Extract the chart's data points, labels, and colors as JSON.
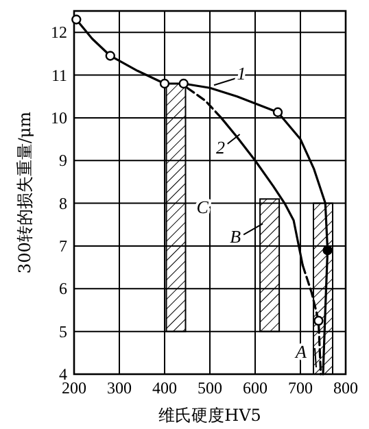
{
  "chart_data": {
    "type": "line",
    "xlabel": "维氏硬度HV5",
    "ylabel": "300转的损失重量/μm",
    "xlim": [
      200,
      800
    ],
    "xticks": [
      200,
      300,
      400,
      500,
      600,
      700,
      800
    ],
    "ylim": [
      4,
      12.5
    ],
    "yticks": [
      4,
      5,
      6,
      7,
      8,
      9,
      10,
      11,
      12
    ],
    "grid": true,
    "series": [
      {
        "type": "bar",
        "color": "#000000",
        "x": [
          425,
          632,
          750
        ],
        "base": [
          5,
          5,
          4
        ],
        "values": [
          5.8,
          3.1,
          4.0
        ]
      },
      {
        "color": "#000000",
        "line_style": "solid",
        "x": [
          205,
          240,
          280,
          340,
          400,
          442,
          500,
          560,
          650,
          700,
          730,
          755,
          760,
          755,
          750
        ],
        "values": [
          12.3,
          11.85,
          11.45,
          11.1,
          10.8,
          10.8,
          10.7,
          10.5,
          10.13,
          9.5,
          8.8,
          8.0,
          6.9,
          5.5,
          4.0
        ]
      },
      {
        "color": "#000000",
        "line_style": "dashed",
        "x": [
          450,
          490,
          525
        ],
        "values": [
          10.7,
          10.4,
          10.0
        ]
      },
      {
        "color": "#000000",
        "line_style": "solid",
        "x": [
          525,
          560,
          600,
          640,
          665,
          685,
          705
        ],
        "values": [
          10.0,
          9.55,
          9.0,
          8.4,
          8.0,
          7.6,
          6.55
        ]
      },
      {
        "color": "#000000",
        "line_style": "dashed",
        "x": [
          705,
          725,
          740,
          745
        ],
        "values": [
          6.55,
          5.9,
          5.25,
          4.0
        ]
      },
      {
        "type": "scatter",
        "color": "#ffffff",
        "x": [
          205,
          280,
          400,
          442,
          650,
          740
        ],
        "values": [
          12.3,
          11.45,
          10.8,
          10.8,
          10.13,
          5.25
        ]
      },
      {
        "type": "scatter",
        "color": "#000000",
        "x": [
          760
        ],
        "values": [
          6.9
        ]
      }
    ],
    "annotations": [
      {
        "text": "1",
        "x": 500,
        "y": 10.7
      },
      {
        "text": "2",
        "x": 560,
        "y": 9.55
      },
      "C",
      {
        "text": "B",
        "x": 632,
        "y": 8.1
      },
      {
        "text": "A",
        "x": 750,
        "y": 4.0
      }
    ]
  }
}
